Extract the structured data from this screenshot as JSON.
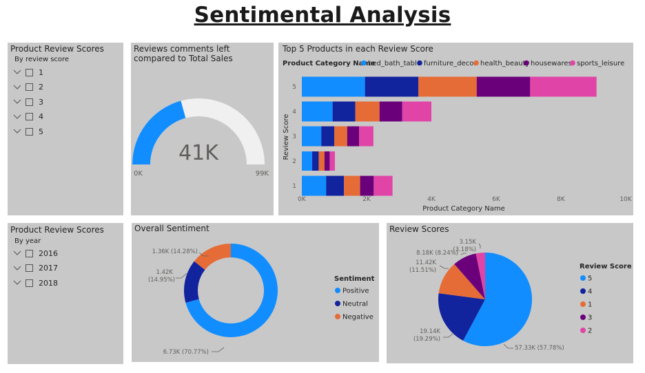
{
  "page_title": "Sentimental Analysis",
  "slicer_score": {
    "title": "Product Review Scores",
    "subtitle": "By review score",
    "items": [
      "1",
      "2",
      "3",
      "4",
      "5"
    ]
  },
  "slicer_year": {
    "title": "Product Review Scores",
    "subtitle": "By year",
    "items": [
      "2016",
      "2017",
      "2018"
    ]
  },
  "gauge": {
    "title": "Reviews comments left compared to Total Sales",
    "value_label": "41K",
    "min_label": "0K",
    "max_label": "99K",
    "value": 41,
    "max": 99,
    "fill_color": "#118dff",
    "track_color": "#f0f0f0"
  },
  "colors": {
    "blue": "#118dff",
    "navy": "#12239e",
    "orange": "#e66c37",
    "purple": "#6b007b",
    "pink": "#e044a7"
  },
  "bar_chart": {
    "title": "Top 5 Products in each Review Score",
    "legend_title": "Product Category Name",
    "xlabel": "Product Category Name",
    "ylabel": "Review Score"
  },
  "donut_chart": {
    "title": "Overall Sentiment",
    "legend_title": "Sentiment"
  },
  "pie_chart": {
    "title": "Review Scores",
    "legend_title": "Review Score"
  },
  "chart_data": [
    {
      "type": "bar",
      "stacked": true,
      "orientation": "horizontal",
      "title": "Top 5 Products in each Review Score",
      "xlabel": "Product Category Name",
      "ylabel": "Review Score",
      "xlim": [
        0,
        10000
      ],
      "x_ticks": [
        "0K",
        "2K",
        "4K",
        "6K",
        "8K",
        "10K"
      ],
      "categories": [
        "5",
        "4",
        "3",
        "2",
        "1"
      ],
      "series": [
        {
          "name": "bed_bath_table",
          "color": "#118dff",
          "values": [
            1950,
            950,
            600,
            320,
            750
          ]
        },
        {
          "name": "furniture_decor",
          "color": "#12239e",
          "values": [
            1650,
            700,
            400,
            200,
            550
          ]
        },
        {
          "name": "health_beauty",
          "color": "#e66c37",
          "values": [
            1800,
            750,
            400,
            180,
            500
          ]
        },
        {
          "name": "housewares",
          "color": "#6b007b",
          "values": [
            1650,
            700,
            370,
            160,
            420
          ]
        },
        {
          "name": "sports_leisure",
          "color": "#e044a7",
          "values": [
            2050,
            900,
            440,
            160,
            580
          ]
        }
      ]
    },
    {
      "type": "pie",
      "donut": true,
      "title": "Overall Sentiment",
      "legend_title": "Sentiment",
      "slices": [
        {
          "name": "Positive",
          "color": "#118dff",
          "value": 6730,
          "label": "6.73K (70.77%)"
        },
        {
          "name": "Neutral",
          "color": "#12239e",
          "value": 1420,
          "label": "1.42K (14.95%)"
        },
        {
          "name": "Negative",
          "color": "#e66c37",
          "value": 1360,
          "label": "1.36K (14.28%)"
        }
      ]
    },
    {
      "type": "pie",
      "title": "Review Scores",
      "legend_title": "Review Score",
      "slices": [
        {
          "name": "5",
          "color": "#118dff",
          "value": 57330,
          "label": "57.33K (57.78%)"
        },
        {
          "name": "4",
          "color": "#12239e",
          "value": 19140,
          "label": "19.14K (19.29%)"
        },
        {
          "name": "1",
          "color": "#e66c37",
          "value": 11420,
          "label": "11.42K (11.51%)"
        },
        {
          "name": "3",
          "color": "#6b007b",
          "value": 8180,
          "label": "8.18K (8.24%)"
        },
        {
          "name": "2",
          "color": "#e044a7",
          "value": 3150,
          "label": "3.15K (3.18%)"
        }
      ]
    }
  ]
}
